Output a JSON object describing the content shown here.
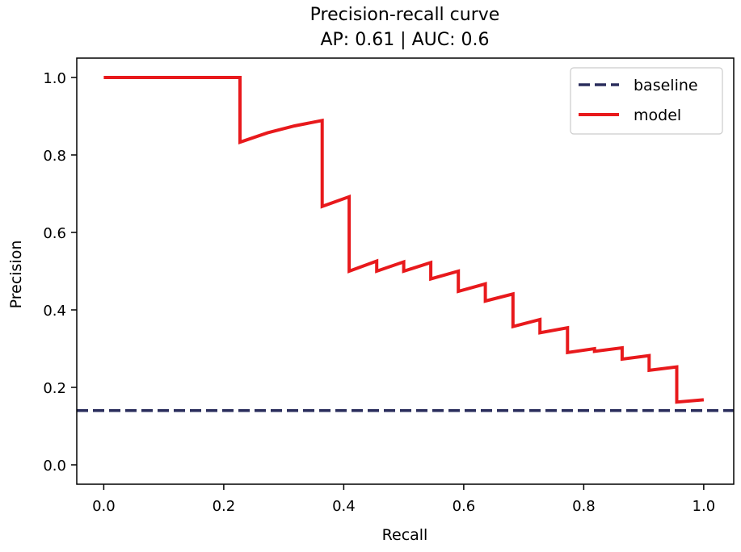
{
  "chart_data": {
    "type": "line",
    "title": "Precision-recall curve",
    "subtitle": "AP: 0.61 | AUC: 0.6",
    "xlabel": "Recall",
    "ylabel": "Precision",
    "xlim": [
      -0.045,
      1.05
    ],
    "ylim": [
      -0.05,
      1.05
    ],
    "x_ticks": [
      0.0,
      0.2,
      0.4,
      0.6,
      0.8,
      1.0
    ],
    "x_tick_labels": [
      "0.0",
      "0.2",
      "0.4",
      "0.6",
      "0.8",
      "1.0"
    ],
    "y_ticks": [
      0.0,
      0.2,
      0.4,
      0.6,
      0.8,
      1.0
    ],
    "y_tick_labels": [
      "0.0",
      "0.2",
      "0.4",
      "0.6",
      "0.8",
      "1.0"
    ],
    "grid": false,
    "legend_position": "top-right",
    "series": [
      {
        "name": "baseline",
        "style": "dashed",
        "color": "#2a2d5c",
        "x": [
          -0.045,
          1.05
        ],
        "y": [
          0.14,
          0.14
        ]
      },
      {
        "name": "model",
        "style": "solid",
        "color": "#e8191c",
        "x": [
          0.0,
          0.227,
          0.227,
          0.273,
          0.318,
          0.364,
          0.364,
          0.409,
          0.409,
          0.455,
          0.455,
          0.5,
          0.5,
          0.545,
          0.545,
          0.591,
          0.591,
          0.636,
          0.636,
          0.682,
          0.682,
          0.727,
          0.727,
          0.773,
          0.773,
          0.818,
          0.818,
          0.864,
          0.864,
          0.909,
          0.909,
          0.955,
          0.955,
          1.0
        ],
        "y": [
          1.0,
          1.0,
          0.833,
          0.857,
          0.875,
          0.889,
          0.667,
          0.692,
          0.5,
          0.526,
          0.5,
          0.524,
          0.5,
          0.522,
          0.48,
          0.5,
          0.448,
          0.467,
          0.423,
          0.441,
          0.357,
          0.375,
          0.341,
          0.354,
          0.29,
          0.3,
          0.293,
          0.302,
          0.273,
          0.282,
          0.244,
          0.253,
          0.162,
          0.168
        ]
      }
    ]
  }
}
